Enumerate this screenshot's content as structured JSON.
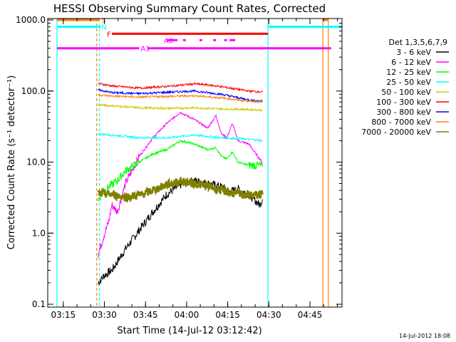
{
  "chart_data": {
    "type": "line",
    "title": "HESSI Observing Summary Count Rates, Corrected",
    "xlabel": "Start Time (14-Jul-12 03:12:42)",
    "ylabel": "Corrected Count Rate (s⁻¹ detector⁻¹)",
    "y_scale": "log",
    "ylim": [
      0.1,
      1000
    ],
    "xlim_minutes": [
      0,
      104
    ],
    "x_ticks": [
      {
        "t": 2.3,
        "label": "03:15"
      },
      {
        "t": 17.3,
        "label": "03:30"
      },
      {
        "t": 32.3,
        "label": "03:45"
      },
      {
        "t": 47.3,
        "label": "04:00"
      },
      {
        "t": 62.3,
        "label": "04:15"
      },
      {
        "t": 77.3,
        "label": "04:30"
      },
      {
        "t": 92.3,
        "label": "04:45"
      }
    ],
    "y_ticks": [
      {
        "v": 0.1,
        "label": "0.1"
      },
      {
        "v": 1,
        "label": "1.0"
      },
      {
        "v": 10,
        "label": "10.0"
      },
      {
        "v": 100,
        "label": "100.0"
      },
      {
        "v": 1000,
        "label": "1000.0"
      }
    ],
    "legend": {
      "header": "Det 1,3,5,6,7,9",
      "placement": "right"
    },
    "series": [
      {
        "name": "3 - 6 keV",
        "color": "#000000",
        "x": [
          15,
          16,
          17,
          20,
          25,
          30,
          35,
          40,
          45,
          50,
          55,
          60,
          63,
          66,
          70,
          74,
          75
        ],
        "y": [
          0.2,
          0.22,
          0.25,
          0.3,
          0.6,
          1.1,
          2.0,
          3.5,
          4.8,
          5.5,
          5.0,
          4.5,
          3.8,
          4.2,
          3.5,
          2.5,
          3.0
        ]
      },
      {
        "name": "6 - 12 keV",
        "color": "#ff00ff",
        "x": [
          15,
          17,
          19,
          20,
          22,
          25,
          30,
          35,
          40,
          45,
          50,
          55,
          58,
          60,
          62,
          64,
          66,
          70,
          74,
          75
        ],
        "y": [
          0.5,
          0.9,
          1.5,
          2.5,
          2.0,
          5.0,
          12,
          22,
          35,
          50,
          40,
          30,
          45,
          25,
          22,
          35,
          20,
          18,
          11,
          10
        ]
      },
      {
        "name": "12 - 25 keV",
        "color": "#00ff00",
        "x": [
          15,
          17,
          19,
          22,
          25,
          30,
          35,
          40,
          45,
          50,
          55,
          58,
          60,
          62,
          64,
          66,
          70,
          74,
          75
        ],
        "y": [
          3.0,
          3.8,
          4.5,
          5.5,
          7.5,
          10,
          13,
          15,
          20,
          18,
          15,
          16,
          12,
          11,
          14,
          10,
          9,
          9,
          8.5
        ]
      },
      {
        "name": "25 - 50 keV",
        "color": "#00ffff",
        "x": [
          15,
          20,
          30,
          40,
          50,
          60,
          70,
          75
        ],
        "y": [
          25,
          24,
          22,
          22,
          24,
          22,
          21,
          20
        ]
      },
      {
        "name": "50 - 100 keV",
        "color": "#cccc00",
        "x": [
          15,
          20,
          30,
          40,
          50,
          60,
          70,
          75
        ],
        "y": [
          64,
          62,
          58,
          57,
          58,
          56,
          55,
          54
        ]
      },
      {
        "name": "100 - 300 keV",
        "color": "#ff0000",
        "x": [
          15,
          20,
          30,
          40,
          50,
          55,
          60,
          70,
          75
        ],
        "y": [
          128,
          118,
          110,
          116,
          126,
          122,
          115,
          100,
          97
        ]
      },
      {
        "name": "300 - 800 keV",
        "color": "#0000ff",
        "x": [
          15,
          20,
          30,
          40,
          50,
          60,
          70,
          75
        ],
        "y": [
          104,
          95,
          92,
          96,
          100,
          90,
          75,
          72
        ]
      },
      {
        "name": "800 - 7000 keV",
        "color": "#ff8000",
        "x": [
          15,
          20,
          30,
          40,
          50,
          60,
          70,
          75
        ],
        "y": [
          88,
          85,
          82,
          84,
          86,
          80,
          72,
          70
        ]
      },
      {
        "name": "7000 - 20000 keV",
        "color": "#808000",
        "x": [
          15,
          20,
          25,
          30,
          35,
          40,
          45,
          50,
          55,
          60,
          65,
          70,
          75
        ],
        "y": [
          3.6,
          3.5,
          3.2,
          3.4,
          4.0,
          4.8,
          5.4,
          5.0,
          4.6,
          4.0,
          3.6,
          3.4,
          3.5
        ]
      }
    ],
    "flag_bars": [
      {
        "label": "S",
        "color": "#ff8000",
        "row": 1000,
        "segments": [
          [
            0,
            15.5
          ],
          [
            97,
            99
          ]
        ]
      },
      {
        "label": "N",
        "color": "#00ffff",
        "row": 800,
        "segments": [
          [
            0,
            16
          ],
          [
            77,
            104
          ]
        ]
      },
      {
        "label": "F",
        "color": "#ff0000",
        "row": 640,
        "segments": [
          [
            20,
            77
          ]
        ]
      },
      {
        "label": "A0",
        "color": "#ff00ff",
        "row": 520,
        "segments": [
          [
            40,
            44
          ],
          [
            46,
            47
          ],
          [
            52,
            53
          ],
          [
            57,
            58
          ],
          [
            61,
            62
          ],
          [
            63,
            65
          ]
        ]
      },
      {
        "label": "A1",
        "color": "#ff00ff",
        "row": 400,
        "segments": [
          [
            0,
            30
          ],
          [
            33,
            100
          ]
        ]
      }
    ],
    "vertical_lines": [
      {
        "t": 0,
        "color": "#00ffff",
        "style": "solid"
      },
      {
        "t": 14.5,
        "color": "#ff8000",
        "style": "dashed"
      },
      {
        "t": 15.5,
        "color": "#00ffff",
        "style": "dashed"
      },
      {
        "t": 77,
        "color": "#00ffff",
        "style": "solid"
      },
      {
        "t": 97,
        "color": "#ff8000",
        "style": "solid"
      },
      {
        "t": 99,
        "color": "#ff8000",
        "style": "solid"
      }
    ]
  },
  "footer": {
    "date_stamp": "14-Jul-2012 18:08"
  }
}
